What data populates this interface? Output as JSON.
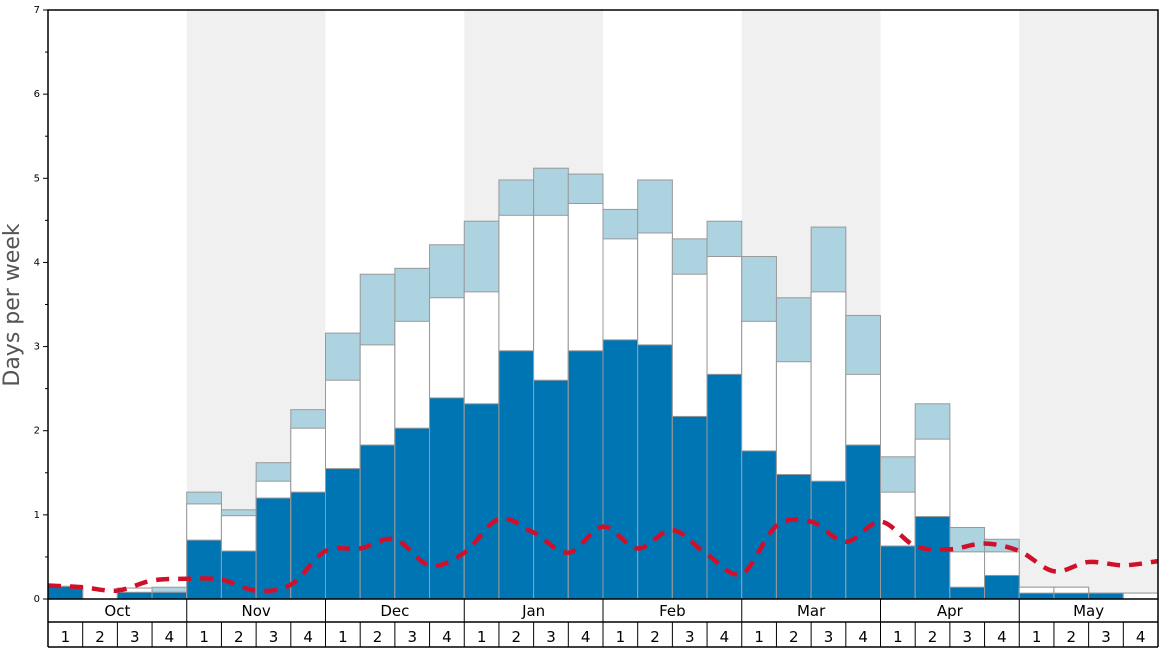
{
  "chart_data": {
    "type": "bar",
    "title": "",
    "xlabel": "",
    "ylabel": "Days per week",
    "ylim": [
      0,
      7
    ],
    "yticks": [
      0,
      1,
      2,
      3,
      4,
      5,
      6,
      7
    ],
    "months": [
      "Oct",
      "Nov",
      "Dec",
      "Jan",
      "Feb",
      "Mar",
      "Apr",
      "May"
    ],
    "weeks": [
      "1",
      "2",
      "3",
      "4"
    ],
    "colors": {
      "dark": "#0075b4",
      "mid": "#ffffff",
      "light": "#add3e0",
      "line": "#d0102a",
      "band": "#f0f0f0"
    },
    "series": [
      {
        "name": "dark",
        "values": [
          0.15,
          0.0,
          0.08,
          0.08,
          0.7,
          0.57,
          1.2,
          1.27,
          1.55,
          1.83,
          2.03,
          2.39,
          2.32,
          2.95,
          2.6,
          2.95,
          3.08,
          3.02,
          2.17,
          2.67,
          1.76,
          1.48,
          1.4,
          1.83,
          0.63,
          0.98,
          0.14,
          0.28,
          0.07,
          0.07,
          0.07,
          0.0
        ]
      },
      {
        "name": "mid",
        "values": [
          0.15,
          0.0,
          0.13,
          0.08,
          1.13,
          0.99,
          1.4,
          2.03,
          2.6,
          3.02,
          3.3,
          3.58,
          3.65,
          4.56,
          4.56,
          4.7,
          4.28,
          4.35,
          3.86,
          4.07,
          3.3,
          2.82,
          3.65,
          2.67,
          1.27,
          1.9,
          0.56,
          0.56,
          0.14,
          0.14,
          0.07,
          0.07
        ]
      },
      {
        "name": "light",
        "values": [
          0.15,
          0.0,
          0.13,
          0.14,
          1.27,
          1.06,
          1.62,
          2.25,
          3.16,
          3.86,
          3.93,
          4.21,
          4.49,
          4.98,
          5.12,
          5.05,
          4.63,
          4.98,
          4.28,
          4.49,
          4.07,
          3.58,
          4.42,
          3.37,
          1.69,
          2.32,
          0.85,
          0.71,
          0.14,
          0.14,
          0.07,
          0.07
        ]
      },
      {
        "name": "dashed",
        "values": [
          0.16,
          0.14,
          0.1,
          0.22,
          0.24,
          0.23,
          0.1,
          0.17,
          0.57,
          0.6,
          0.71,
          0.4,
          0.55,
          0.95,
          0.79,
          0.55,
          0.86,
          0.6,
          0.82,
          0.53,
          0.3,
          0.87,
          0.92,
          0.68,
          0.92,
          0.63,
          0.59,
          0.66,
          0.57,
          0.33,
          0.44,
          0.4,
          0.45
        ]
      }
    ]
  }
}
